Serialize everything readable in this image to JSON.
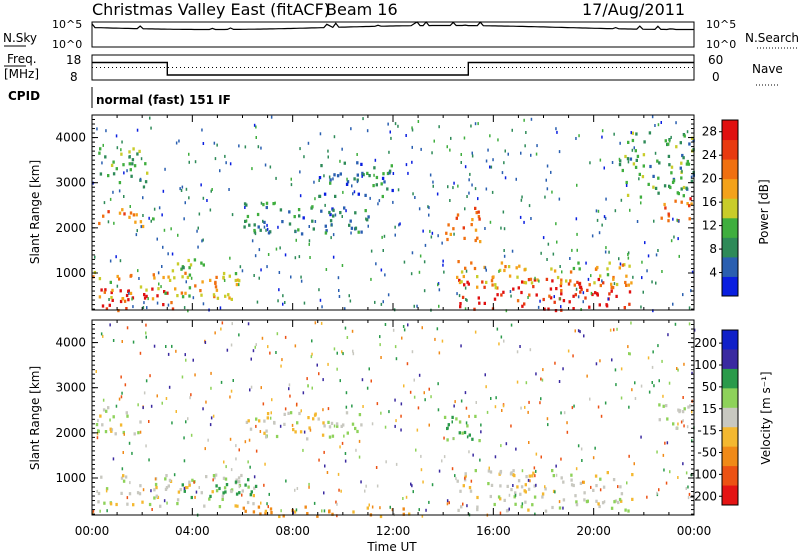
{
  "header": {
    "title": "Christmas Valley East (fitACF)",
    "beam": "Beam 16",
    "date": "17/Aug/2011"
  },
  "noise_panel": {
    "left_label": "N.Sky",
    "right_label": "N.Search",
    "left_ticks": [
      "10^5",
      "10^0"
    ],
    "right_ticks": [
      "10^5",
      "10^0"
    ]
  },
  "freq_panel": {
    "left_label_line1": "Freq.",
    "left_label_line2": "[MHz]",
    "right_label": "Nave",
    "left_ticks": [
      "18",
      "8"
    ],
    "right_ticks": [
      "60",
      "0"
    ]
  },
  "cpid_panel": {
    "label": "CPID",
    "text": "normal (fast) 151 IF"
  },
  "colors": {
    "power": [
      "#0a1fe0",
      "#2a5fb0",
      "#2e8a58",
      "#3fae3e",
      "#c9cc2a",
      "#f4a21a",
      "#f07010",
      "#e83a10",
      "#e01010"
    ],
    "velocity": [
      "#1020c8",
      "#3a2aa0",
      "#2a9a4a",
      "#8ed25a",
      "#c8c8c0",
      "#f4b830",
      "#f08a18",
      "#ec5214",
      "#e41414"
    ]
  },
  "chart_data": [
    {
      "type": "heatmap",
      "title": "",
      "xlabel": "Time UT",
      "ylabel": "Slant Range [km]",
      "x_ticks": [
        "00:00",
        "04:00",
        "08:00",
        "12:00",
        "16:00",
        "20:00",
        "00:00"
      ],
      "xlim_hours": [
        0,
        24
      ],
      "y_ticks": [
        1000,
        2000,
        3000,
        4000
      ],
      "ylim_km": [
        180,
        4500
      ],
      "colorbar": {
        "label": "Power [dB]",
        "ticks": [
          4,
          8,
          12,
          16,
          20,
          24,
          28
        ],
        "range": [
          0,
          30
        ]
      },
      "regions": [
        {
          "t0": 0.0,
          "t1": 3.2,
          "r0": 200,
          "r1": 700,
          "value": 28
        },
        {
          "t0": 0.0,
          "t1": 6.0,
          "r0": 450,
          "r1": 1050,
          "value": 18
        },
        {
          "t0": 3.0,
          "t1": 4.5,
          "r0": 900,
          "r1": 1450,
          "value": 14
        },
        {
          "t0": 0.0,
          "t1": 2.0,
          "r0": 2050,
          "r1": 2450,
          "value": 22
        },
        {
          "t0": 0.2,
          "t1": 2.2,
          "r0": 3000,
          "r1": 3800,
          "value": 12
        },
        {
          "t0": 6.0,
          "t1": 11.0,
          "r0": 1900,
          "r1": 2600,
          "value": 8
        },
        {
          "t0": 9.0,
          "t1": 12.0,
          "r0": 2700,
          "r1": 3500,
          "value": 8
        },
        {
          "t0": 14.0,
          "t1": 15.5,
          "r0": 1700,
          "r1": 2500,
          "value": 22
        },
        {
          "t0": 14.5,
          "t1": 21.5,
          "r0": 200,
          "r1": 900,
          "value": 28
        },
        {
          "t0": 14.5,
          "t1": 21.5,
          "r0": 700,
          "r1": 1300,
          "value": 18
        },
        {
          "t0": 22.5,
          "t1": 24.0,
          "r0": 2150,
          "r1": 2700,
          "value": 24
        },
        {
          "t0": 21.0,
          "t1": 24.0,
          "r0": 2700,
          "r1": 4200,
          "value": 10
        }
      ]
    },
    {
      "type": "heatmap",
      "title": "",
      "xlabel": "Time UT",
      "ylabel": "Slant Range [km]",
      "x_ticks": [
        "00:00",
        "04:00",
        "08:00",
        "12:00",
        "16:00",
        "20:00",
        "00:00"
      ],
      "xlim_hours": [
        0,
        24
      ],
      "y_ticks": [
        1000,
        2000,
        3000,
        4000
      ],
      "ylim_km": [
        180,
        4500
      ],
      "colorbar": {
        "label": "Velocity [m s⁻¹]",
        "ticks": [
          200,
          100,
          50,
          15,
          -15,
          -50,
          -100,
          -200
        ]
      },
      "regions": [
        {
          "t0": 0.0,
          "t1": 6.5,
          "r0": 400,
          "r1": 1100,
          "value": 0
        },
        {
          "t0": 3.5,
          "t1": 6.5,
          "r0": 600,
          "r1": 1000,
          "value": 60
        },
        {
          "t0": 0.0,
          "t1": 2.0,
          "r0": 2000,
          "r1": 2600,
          "value": 0
        },
        {
          "t0": 6.0,
          "t1": 11.0,
          "r0": 1900,
          "r1": 2500,
          "value": 0
        },
        {
          "t0": 14.0,
          "t1": 15.5,
          "r0": 1800,
          "r1": 2400,
          "value": 40
        },
        {
          "t0": 14.5,
          "t1": 21.5,
          "r0": 300,
          "r1": 1200,
          "value": 0
        },
        {
          "t0": 6.0,
          "t1": 13.0,
          "r0": 180,
          "r1": 400,
          "value": -60
        },
        {
          "t0": 22.5,
          "t1": 24.0,
          "r0": 2100,
          "r1": 2700,
          "value": 0
        }
      ]
    }
  ],
  "noise_series": {
    "sky_level": 0.78,
    "search_level": 0.74
  },
  "freq_series": {
    "segments": [
      {
        "t0": 0,
        "t1": 3,
        "freq_mhz": 15
      },
      {
        "t0": 3,
        "t1": 15,
        "freq_mhz": 10
      },
      {
        "t0": 15,
        "t1": 24,
        "freq_mhz": 15
      }
    ],
    "nave": 30
  }
}
